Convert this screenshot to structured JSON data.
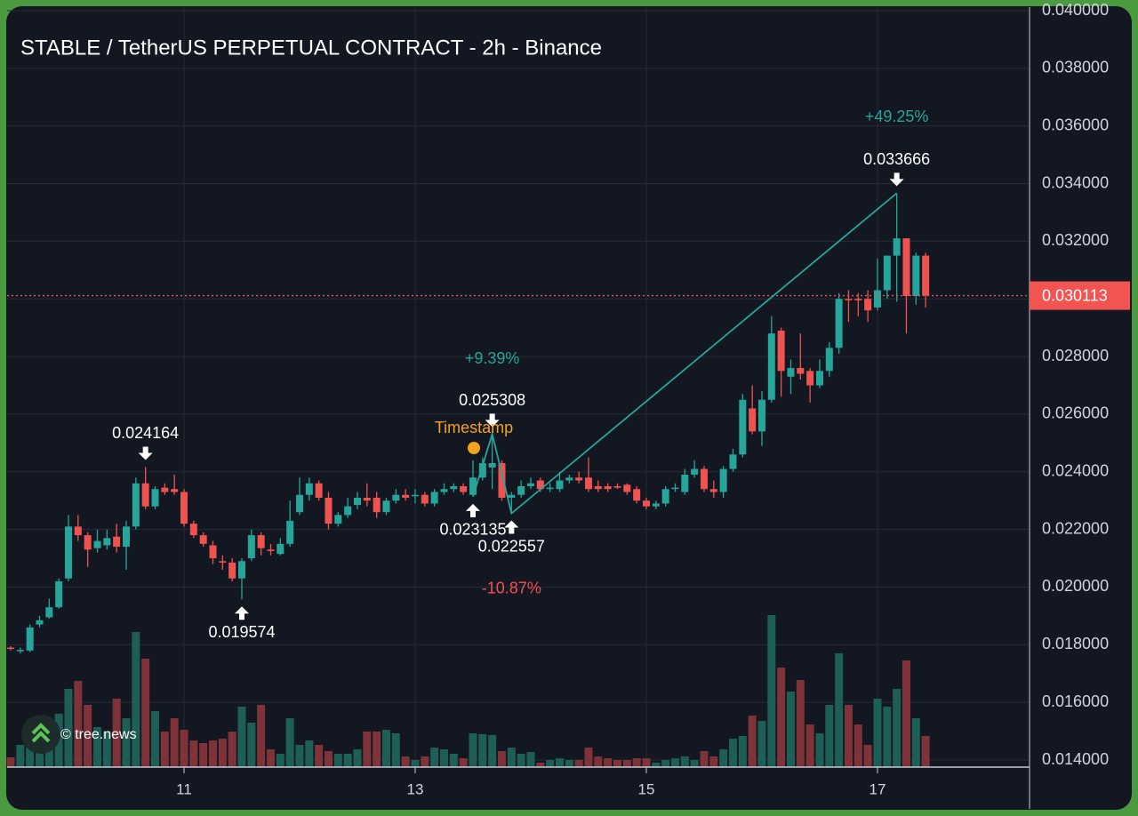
{
  "chart_data": {
    "type": "candlestick",
    "title": "STABLE / TetherUS PERPETUAL CONTRACT - 2h - Binance",
    "categories": [
      null,
      null,
      null,
      null,
      null,
      null,
      null,
      null,
      null,
      null,
      null,
      null,
      null,
      null,
      null,
      null,
      null,
      null,
      "11",
      null,
      null,
      null,
      null,
      null,
      null,
      null,
      null,
      null,
      null,
      null,
      null,
      null,
      null,
      null,
      null,
      null,
      null,
      null,
      null,
      null,
      null,
      null,
      "13",
      null,
      null,
      null,
      null,
      null,
      null,
      null,
      null,
      null,
      null,
      null,
      null,
      null,
      null,
      null,
      null,
      null,
      null,
      null,
      null,
      null,
      null,
      null,
      "15",
      null,
      null,
      null,
      null,
      null,
      null,
      null,
      null,
      null,
      null,
      null,
      null,
      null,
      null,
      null,
      null,
      null,
      null,
      null,
      null,
      null,
      null,
      null,
      "17",
      null,
      null,
      null,
      null,
      null
    ],
    "open": [
      0.0179,
      0.01778,
      0.0178,
      0.0187,
      0.01895,
      0.0193,
      0.0203,
      0.0221,
      0.0218,
      0.02135,
      0.02145,
      0.02175,
      0.0214,
      0.0221,
      0.0236,
      0.0228,
      0.02345,
      0.0234,
      0.0233,
      0.0222,
      0.0218,
      0.02145,
      0.0209,
      0.02085,
      0.0203,
      0.021,
      0.0218,
      0.0213,
      0.02115,
      0.0215,
      0.0226,
      0.0232,
      0.0236,
      0.0231,
      0.0222,
      0.0225,
      0.02285,
      0.0231,
      0.0231,
      0.0226,
      0.023,
      0.0232,
      0.02315,
      0.0232,
      0.0229,
      0.0233,
      0.0234,
      0.0235,
      0.0232,
      0.0238,
      0.02415,
      0.0243,
      0.0231,
      0.0232,
      0.0235,
      0.0237,
      0.0234,
      0.0234,
      0.0237,
      0.0238,
      0.0238,
      0.0235,
      0.0235,
      0.0235,
      0.02355,
      0.0234,
      0.023,
      0.0228,
      0.0229,
      0.0234,
      0.0233,
      0.0239,
      0.0241,
      0.0234,
      0.0233,
      0.0241,
      0.0246,
      0.0262,
      0.0254,
      0.0265,
      0.0289,
      0.0273,
      0.0276,
      0.0275,
      0.027,
      0.0275,
      0.0283,
      0.03,
      0.03,
      0.03,
      0.0297,
      0.0303,
      0.0315,
      0.0321,
      0.0301,
      0.0315
    ],
    "high": [
      0.01795,
      0.0179,
      0.0187,
      0.019,
      0.0196,
      0.0203,
      0.0225,
      0.0225,
      0.0219,
      0.022,
      0.022,
      0.0222,
      0.0223,
      0.0238,
      0.024164,
      0.0235,
      0.0236,
      0.0239,
      0.0234,
      0.0223,
      0.0219,
      0.0216,
      0.0211,
      0.021,
      0.021,
      0.022,
      0.0219,
      0.0215,
      0.0217,
      0.023,
      0.0238,
      0.0238,
      0.0237,
      0.0233,
      0.0226,
      0.0231,
      0.0233,
      0.0236,
      0.0233,
      0.0231,
      0.0234,
      0.0234,
      0.0234,
      0.0233,
      0.0234,
      0.0236,
      0.0236,
      0.0236,
      0.0244,
      0.0245,
      0.025308,
      0.0244,
      0.0233,
      0.0237,
      0.0238,
      0.0238,
      0.0236,
      0.024,
      0.0239,
      0.024,
      0.0245,
      0.0237,
      0.0236,
      0.0236,
      0.0236,
      0.0235,
      0.0231,
      0.023,
      0.0235,
      0.0236,
      0.0241,
      0.0244,
      0.0242,
      0.0237,
      0.0242,
      0.0248,
      0.0267,
      0.027,
      0.0268,
      0.0294,
      0.029,
      0.0279,
      0.0288,
      0.0276,
      0.0279,
      0.0285,
      0.0302,
      0.0303,
      0.0302,
      0.0303,
      0.0314,
      0.0315,
      0.033666,
      0.0321,
      0.0316,
      0.0316
    ],
    "low": [
      0.0178,
      0.0177,
      0.01775,
      0.0186,
      0.0189,
      0.01925,
      0.0202,
      0.0216,
      0.0207,
      0.0212,
      0.0213,
      0.0212,
      0.0206,
      0.022,
      0.0227,
      0.0227,
      0.0232,
      0.0232,
      0.0221,
      0.0217,
      0.0214,
      0.0208,
      0.0206,
      0.0202,
      0.019574,
      0.0209,
      0.0211,
      0.0211,
      0.0211,
      0.0214,
      0.0225,
      0.023,
      0.023,
      0.022,
      0.0221,
      0.0224,
      0.0227,
      0.0228,
      0.0224,
      0.0225,
      0.0229,
      0.023,
      0.0229,
      0.0228,
      0.0228,
      0.0232,
      0.0233,
      0.0232,
      0.023135,
      0.0237,
      0.0234,
      0.023,
      0.022557,
      0.0231,
      0.0234,
      0.0233,
      0.0233,
      0.0233,
      0.0236,
      0.0236,
      0.0233,
      0.0233,
      0.0233,
      0.0234,
      0.0232,
      0.0229,
      0.0227,
      0.0227,
      0.0228,
      0.0233,
      0.0232,
      0.0238,
      0.0233,
      0.0231,
      0.0231,
      0.024,
      0.0245,
      0.0253,
      0.0249,
      0.0264,
      0.0266,
      0.0267,
      0.0272,
      0.0264,
      0.0269,
      0.0273,
      0.0281,
      0.0292,
      0.0294,
      0.0292,
      0.0296,
      0.03,
      0.0299,
      0.0288,
      0.0298,
      0.0297
    ],
    "close": [
      0.01788,
      0.01782,
      0.0186,
      0.01885,
      0.0193,
      0.0202,
      0.0221,
      0.0218,
      0.0213,
      0.0216,
      0.0217,
      0.0214,
      0.0221,
      0.0236,
      0.0228,
      0.0234,
      0.0233,
      0.0233,
      0.0222,
      0.0218,
      0.0215,
      0.021,
      0.02085,
      0.0203,
      0.0209,
      0.0218,
      0.02135,
      0.02125,
      0.0215,
      0.0223,
      0.0232,
      0.0236,
      0.0231,
      0.0222,
      0.0225,
      0.0228,
      0.0231,
      0.023,
      0.0226,
      0.023,
      0.0232,
      0.0231,
      0.0232,
      0.0229,
      0.0233,
      0.0234,
      0.0235,
      0.0233,
      0.0238,
      0.0243,
      0.0243,
      0.0231,
      0.0232,
      0.0235,
      0.0236,
      0.0234,
      0.02345,
      0.0237,
      0.0238,
      0.0237,
      0.0234,
      0.0234,
      0.0234,
      0.02345,
      0.0233,
      0.023,
      0.0228,
      0.0229,
      0.0234,
      0.02345,
      0.0239,
      0.0241,
      0.0234,
      0.0233,
      0.0241,
      0.0246,
      0.0265,
      0.0254,
      0.0265,
      0.0288,
      0.0275,
      0.0276,
      0.0274,
      0.027,
      0.0275,
      0.0283,
      0.03,
      0.02995,
      0.02995,
      0.0296,
      0.0303,
      0.0315,
      0.0321,
      0.0301,
      0.0315,
      0.030113
    ],
    "volume": [
      11,
      25,
      25,
      40,
      50,
      60,
      88,
      97,
      70,
      45,
      40,
      77,
      55,
      152,
      122,
      63,
      40,
      55,
      42,
      30,
      27,
      30,
      32,
      40,
      68,
      50,
      70,
      20,
      15,
      55,
      25,
      30,
      25,
      18,
      15,
      15,
      20,
      40,
      40,
      42,
      38,
      12,
      8,
      12,
      22,
      20,
      15,
      10,
      38,
      37,
      36,
      18,
      22,
      15,
      17,
      5,
      8,
      10,
      8,
      8,
      22,
      12,
      10,
      8,
      8,
      10,
      10,
      5,
      8,
      10,
      12,
      8,
      18,
      12,
      20,
      32,
      35,
      58,
      52,
      171,
      112,
      85,
      98,
      48,
      38,
      70,
      128,
      70,
      48,
      25,
      77,
      68,
      88,
      120,
      55,
      35
    ],
    "ylim": [
      0.014,
      0.04
    ],
    "yticks": [
      {
        "value": 0.014,
        "label": "0.014000"
      },
      {
        "value": 0.016,
        "label": "0.016000"
      },
      {
        "value": 0.018,
        "label": "0.018000"
      },
      {
        "value": 0.02,
        "label": "0.020000"
      },
      {
        "value": 0.022,
        "label": "0.022000"
      },
      {
        "value": 0.024,
        "label": "0.024000"
      },
      {
        "value": 0.026,
        "label": "0.026000"
      },
      {
        "value": 0.028,
        "label": "0.028000"
      },
      {
        "value": 0.03,
        "label": "0.030000"
      },
      {
        "value": 0.032,
        "label": "0.032000"
      },
      {
        "value": 0.034,
        "label": "0.034000"
      },
      {
        "value": 0.036,
        "label": "0.036000"
      },
      {
        "value": 0.038,
        "label": "0.038000"
      },
      {
        "value": 0.04,
        "label": "0.040000"
      }
    ],
    "grid": true,
    "up_color": "#26a69a",
    "down_color": "#ef5350",
    "high_labels": [
      0.024164,
      0.025308,
      0.033666
    ],
    "low_labels": [
      0.019574,
      0.023135,
      0.022557
    ],
    "changes": [
      {
        "value": 9.39,
        "label": "+9.39%"
      },
      {
        "value": -10.87,
        "label": "-10.87%"
      },
      {
        "value": 49.25,
        "label": "+49.25%"
      }
    ],
    "timestamp_label": "Timestamp",
    "watermark": "© tree.news"
  }
}
